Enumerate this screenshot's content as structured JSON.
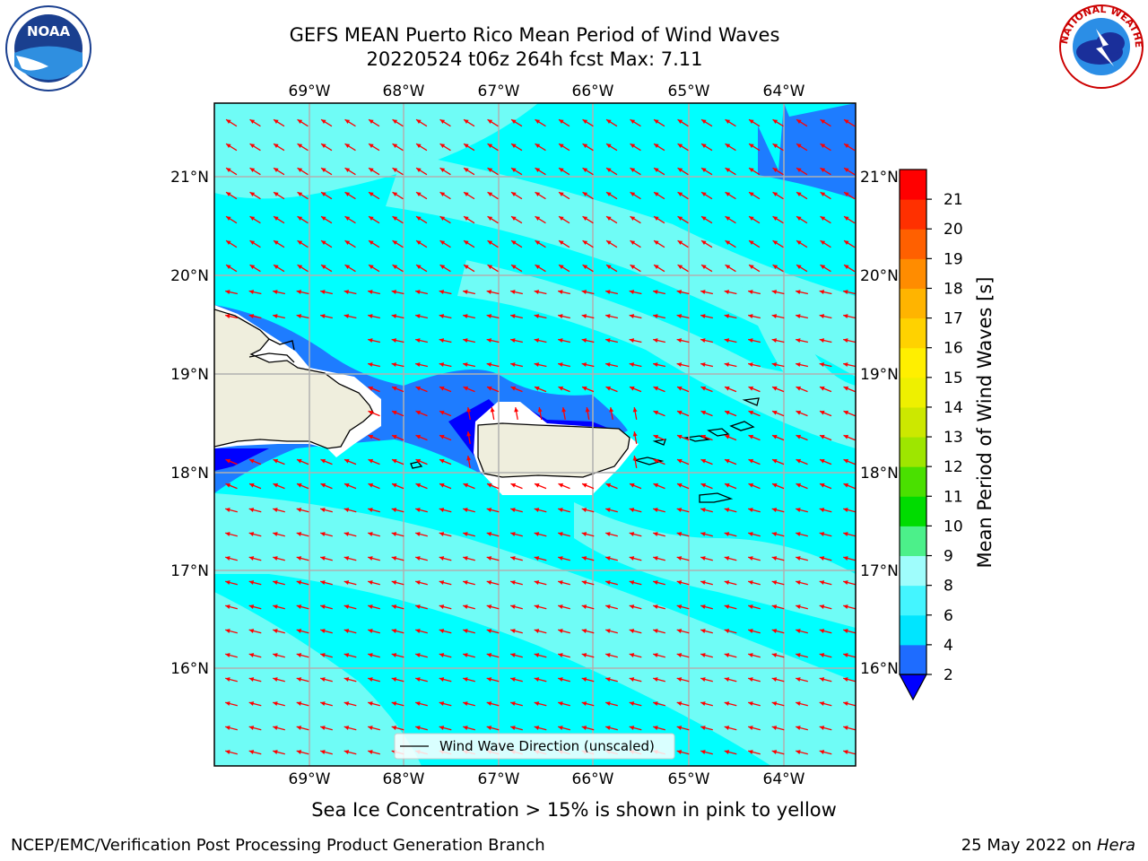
{
  "title_line1": "GEFS MEAN Puerto Rico Mean Period of Wind Waves",
  "title_line2": "20220524 t06z 264h fcst   Max: 7.11",
  "noaa_logo_text": "NOAA",
  "nws_logo_text": "NATIONAL WEATHER SERVICE",
  "lon_ticks": [
    "69°W",
    "68°W",
    "67°W",
    "66°W",
    "65°W",
    "64°W"
  ],
  "lat_ticks": [
    "21°N",
    "20°N",
    "19°N",
    "18°N",
    "17°N",
    "16°N"
  ],
  "legend_label": "Wind Wave Direction (unscaled)",
  "colorbar": {
    "label": "Mean Period of Wind Waves [s]",
    "ticks": [
      "2",
      "4",
      "6",
      "8",
      "9",
      "10",
      "11",
      "12",
      "13",
      "14",
      "15",
      "16",
      "17",
      "18",
      "19",
      "20",
      "21"
    ],
    "colors": [
      "#1e6cff",
      "#00e5ff",
      "#44f5ff",
      "#9ffdfc",
      "#4cf08a",
      "#00dc00",
      "#4ae000",
      "#9ee600",
      "#cce800",
      "#eef000",
      "#ffef00",
      "#ffd200",
      "#ffb400",
      "#ff8c00",
      "#ff6000",
      "#ff3000",
      "#ff0000"
    ],
    "under_color": "#0000ff"
  },
  "sea_ice_note": "Sea Ice Concentration > 15% is shown in pink to yellow",
  "footer_left": "NCEP/EMC/Verification Post Processing Product Generation Branch",
  "footer_date": "25 May 2022 on",
  "footer_machine": "Hera",
  "map_colors": {
    "ocean_base": "#00ffff",
    "ocean_light": "#6ffcf6",
    "ocean_mid": "#1e7cff",
    "ocean_deep": "#0000ff",
    "land": "#efeedd",
    "arrow": "#ff0000",
    "grid": "#b0b0b0"
  }
}
